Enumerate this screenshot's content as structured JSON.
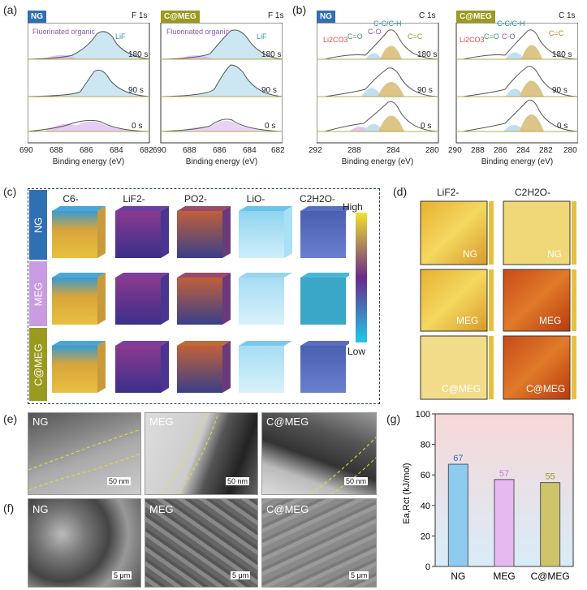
{
  "panels": {
    "a": {
      "label": "(a)",
      "tags": [
        {
          "text": "NG",
          "color": "#2f6fb3"
        },
        {
          "text": "C@MEG",
          "color": "#9a9a1e"
        }
      ],
      "title": "F 1s",
      "annotations": {
        "organic": "Fluorinated organic",
        "lif": "LiF"
      },
      "times": [
        "180 s",
        "90 s",
        "0 s"
      ],
      "xticks": [
        "690",
        "688",
        "686",
        "684",
        "682"
      ],
      "xlabel": "Binding energy (eV)"
    },
    "b": {
      "label": "(b)",
      "tags": [
        {
          "text": "NG",
          "color": "#2f6fb3"
        },
        {
          "text": "C@MEG",
          "color": "#9a9a1e"
        }
      ],
      "title": "C 1s",
      "annotations": {
        "li2co3": "Li2CO3",
        "co_double": "C=O",
        "co": "C-O",
        "cch": "C-C/C-H",
        "cc": "C=C"
      },
      "times": [
        "180 s",
        "90 s",
        "0 s"
      ],
      "xticks": [
        "292",
        "288",
        "284",
        "280"
      ],
      "xticks2": [
        "290",
        "288",
        "286",
        "284",
        "282",
        "280"
      ],
      "xlabel": "Binding energy (eV)"
    },
    "c": {
      "label": "(c)",
      "columns": [
        "C6-",
        "LiF2-",
        "PO2-",
        "LiO-",
        "C2H2O-"
      ],
      "rows": [
        {
          "text": "NG",
          "color": "#2f6fb3"
        },
        {
          "text": "MEG",
          "color": "#c99be0"
        },
        {
          "text": "C@MEG",
          "color": "#9a9a1e"
        }
      ],
      "colorbar": {
        "high": "High",
        "low": "Low"
      }
    },
    "d": {
      "label": "(d)",
      "columns": [
        "LiF2-",
        "C2H2O-"
      ],
      "rows": [
        "NG",
        "MEG",
        "C@MEG"
      ]
    },
    "e": {
      "label": "(e)",
      "images": [
        {
          "name": "NG",
          "scale": "50 nm"
        },
        {
          "name": "MEG",
          "scale": "50 nm"
        },
        {
          "name": "C@MEG",
          "scale": "50 nm"
        }
      ]
    },
    "f": {
      "label": "(f)",
      "images": [
        {
          "name": "NG",
          "scale": "5 μm"
        },
        {
          "name": "MEG",
          "scale": "5 μm"
        },
        {
          "name": "C@MEG",
          "scale": "5 μm"
        }
      ]
    },
    "g": {
      "label": "(g)"
    }
  },
  "chart_data": {
    "type": "bar",
    "categories": [
      "NG",
      "MEG",
      "C@MEG"
    ],
    "values": [
      67,
      57,
      55
    ],
    "data_labels": [
      "67",
      "57",
      "55"
    ],
    "ylabel": "Ea,Rct (kJ/mol)",
    "ylim": [
      0,
      100
    ],
    "yticks": [
      0,
      20,
      40,
      60,
      80,
      100
    ],
    "colors": [
      "#8ecbf0",
      "#e6b8f2",
      "#cfc46a"
    ],
    "label_colors": [
      "#2f6fb3",
      "#b77fd6",
      "#9a9a1e"
    ]
  }
}
